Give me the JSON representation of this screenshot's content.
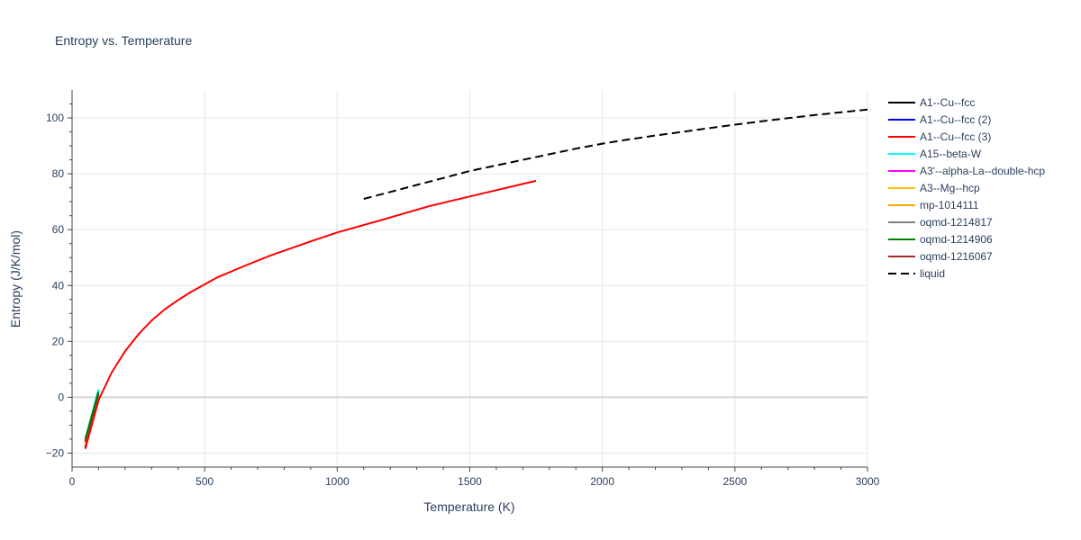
{
  "chart_data": {
    "type": "line",
    "title": "Entropy vs. Temperature",
    "xlabel": "Temperature (K)",
    "ylabel": "Entropy (J/K/mol)",
    "xlim": [
      0,
      3000
    ],
    "ylim": [
      -25,
      110
    ],
    "xticks": [
      0,
      500,
      1000,
      1500,
      2000,
      2500,
      3000
    ],
    "xtick_labels": [
      "0",
      "500",
      "1000",
      "1500",
      "2000",
      "2500",
      "3000"
    ],
    "yticks": [
      -20,
      0,
      20,
      40,
      60,
      80,
      100
    ],
    "ytick_labels": [
      "−20",
      "0",
      "20",
      "40",
      "60",
      "80",
      "100"
    ],
    "grid": true,
    "legend_position": "right",
    "series": [
      {
        "name": "A1--Cu--fcc",
        "color": "#000000",
        "dash": "solid",
        "x": [
          50,
          100
        ],
        "y": [
          -18,
          -1
        ]
      },
      {
        "name": "A1--Cu--fcc (2)",
        "color": "#0000ff",
        "dash": "solid",
        "x": [
          50,
          100
        ],
        "y": [
          -18,
          -1
        ]
      },
      {
        "name": "A1--Cu--fcc (3)",
        "color": "#ff0000",
        "dash": "solid",
        "x": [
          50,
          100,
          150,
          200,
          250,
          300,
          350,
          400,
          450,
          550,
          650,
          750,
          900,
          1000,
          1150,
          1350,
          1550,
          1750
        ],
        "y": [
          -18.5,
          -1,
          9,
          16.5,
          22.5,
          27.5,
          31.5,
          34.8,
          37.8,
          43,
          47,
          50.8,
          55.8,
          59,
          63,
          68.5,
          73,
          77.5
        ]
      },
      {
        "name": "A15--beta-W",
        "color": "#00ffff",
        "dash": "solid",
        "x": [
          50,
          100
        ],
        "y": [
          -15,
          3
        ]
      },
      {
        "name": "A3'--alpha-La--double-hcp",
        "color": "#ff00ff",
        "dash": "solid",
        "x": [
          50,
          100
        ],
        "y": [
          -16,
          1
        ]
      },
      {
        "name": "A3--Mg--hcp",
        "color": "#ffbf00",
        "dash": "solid",
        "x": [
          50,
          100
        ],
        "y": [
          -16.5,
          0.5
        ]
      },
      {
        "name": "mp-1014111",
        "color": "#ffa500",
        "dash": "solid",
        "x": [
          50,
          100
        ],
        "y": [
          -17,
          0
        ]
      },
      {
        "name": "oqmd-1214817",
        "color": "#808080",
        "dash": "solid",
        "x": [
          50,
          100
        ],
        "y": [
          -15.5,
          1.5
        ]
      },
      {
        "name": "oqmd-1214906",
        "color": "#008000",
        "dash": "solid",
        "x": [
          50,
          100
        ],
        "y": [
          -15,
          2
        ]
      },
      {
        "name": "oqmd-1216067",
        "color": "#a52a2a",
        "dash": "solid",
        "x": [
          50,
          100
        ],
        "y": [
          -16,
          1
        ]
      },
      {
        "name": "liquid",
        "color": "#000000",
        "dash": "dash",
        "x": [
          1100,
          1200,
          1300,
          1400,
          1500,
          1600,
          1700,
          1800,
          1900,
          2000,
          2100,
          2200,
          2300,
          2400,
          2500,
          2600,
          2700,
          2800,
          2900,
          3000
        ],
        "y": [
          71,
          73.5,
          76,
          78.5,
          81,
          83,
          85,
          87,
          89,
          90.8,
          92.3,
          93.7,
          95,
          96.3,
          97.6,
          98.8,
          99.9,
          101,
          102,
          103
        ]
      }
    ]
  }
}
